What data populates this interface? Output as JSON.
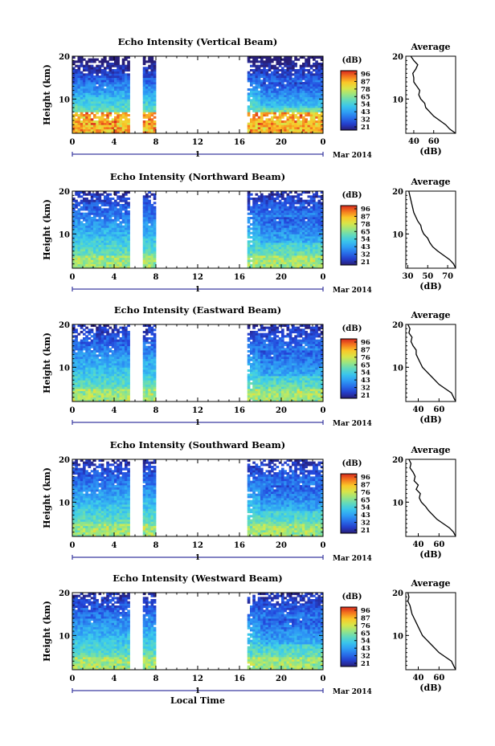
{
  "chart_data": [
    {
      "type": "heatmap",
      "title": "Echo Intensity (Vertical Beam)",
      "ylabel": "Height (km)",
      "xlim": [
        0,
        24
      ],
      "ylim": [
        2,
        20
      ],
      "xticks": [
        "0",
        "4",
        "8",
        "12",
        "16",
        "20",
        "0"
      ],
      "yticks": [
        "10",
        "20"
      ],
      "data_gaps_hours": [
        [
          5.5,
          6.7
        ],
        [
          8.0,
          16.7
        ]
      ],
      "colorbar": {
        "label": "(dB)",
        "ticks": [
          "96",
          "87",
          "78",
          "65",
          "54",
          "43",
          "32",
          "21"
        ]
      },
      "average_profile": {
        "title": "Average",
        "xlabel": "(dB)",
        "xticks": [
          "40",
          "60"
        ],
        "xlim": [
          32,
          82
        ],
        "height_km": [
          2,
          3,
          4,
          5,
          6,
          7,
          8,
          9,
          10,
          11,
          12,
          13,
          14,
          15,
          16,
          17,
          18,
          19,
          20
        ],
        "values_db": [
          82,
          76,
          72,
          66,
          60,
          56,
          52,
          51,
          47,
          45,
          46,
          43,
          40,
          40,
          39,
          42,
          44,
          40,
          37
        ]
      }
    },
    {
      "type": "heatmap",
      "title": "Echo Intensity (Northward Beam)",
      "ylabel": "Height (km)",
      "xlim": [
        0,
        24
      ],
      "ylim": [
        2,
        20
      ],
      "xticks": [
        "0",
        "4",
        "8",
        "12",
        "16",
        "20",
        "0"
      ],
      "yticks": [
        "10",
        "20"
      ],
      "data_gaps_hours": [
        [
          5.5,
          6.7
        ],
        [
          8.0,
          16.7
        ]
      ],
      "colorbar": {
        "label": "(dB)",
        "ticks": [
          "96",
          "87",
          "78",
          "65",
          "54",
          "43",
          "32",
          "21"
        ]
      },
      "average_profile": {
        "title": "Average",
        "xlabel": "(dB)",
        "xticks": [
          "30",
          "50",
          "70"
        ],
        "xlim": [
          28,
          78
        ],
        "height_km": [
          2,
          3,
          4,
          5,
          6,
          7,
          8,
          9,
          10,
          11,
          12,
          13,
          14,
          15,
          16,
          17,
          18,
          19,
          20
        ],
        "values_db": [
          78,
          76,
          72,
          66,
          60,
          55,
          52,
          50,
          46,
          44,
          43,
          40,
          38,
          36,
          35,
          34,
          33,
          32,
          31
        ]
      }
    },
    {
      "type": "heatmap",
      "title": "Echo Intensity (Eastward Beam)",
      "ylabel": "Height (km)",
      "xlim": [
        0,
        24
      ],
      "ylim": [
        2,
        20
      ],
      "xticks": [
        "0",
        "4",
        "8",
        "12",
        "16",
        "20",
        "0"
      ],
      "yticks": [
        "10",
        "20"
      ],
      "data_gaps_hours": [
        [
          5.5,
          6.7
        ],
        [
          8.0,
          16.7
        ]
      ],
      "colorbar": {
        "label": "(dB)",
        "ticks": [
          "96",
          "87",
          "76",
          "65",
          "54",
          "43",
          "32",
          "21"
        ]
      },
      "average_profile": {
        "title": "Average",
        "xlabel": "(dB)",
        "xticks": [
          "40",
          "60"
        ],
        "xlim": [
          28,
          76
        ],
        "height_km": [
          2,
          3,
          4,
          5,
          6,
          7,
          8,
          9,
          10,
          11,
          12,
          13,
          14,
          15,
          16,
          17,
          18,
          19,
          20
        ],
        "values_db": [
          76,
          74,
          72,
          66,
          60,
          56,
          52,
          48,
          44,
          42,
          40,
          38,
          38,
          35,
          33,
          34,
          31,
          32,
          30
        ]
      }
    },
    {
      "type": "heatmap",
      "title": "Echo Intensity (Southward Beam)",
      "ylabel": "Height (km)",
      "xlim": [
        0,
        24
      ],
      "ylim": [
        2,
        20
      ],
      "xticks": [
        "0",
        "4",
        "8",
        "12",
        "16",
        "20",
        "0"
      ],
      "yticks": [
        "10",
        "20"
      ],
      "data_gaps_hours": [
        [
          5.5,
          6.7
        ],
        [
          8.0,
          16.7
        ]
      ],
      "colorbar": {
        "label": "(dB)",
        "ticks": [
          "96",
          "87",
          "76",
          "65",
          "54",
          "43",
          "32",
          "21"
        ]
      },
      "average_profile": {
        "title": "Average",
        "xlabel": "(dB)",
        "xticks": [
          "40",
          "60"
        ],
        "xlim": [
          28,
          76
        ],
        "height_km": [
          2,
          3,
          4,
          5,
          6,
          7,
          8,
          9,
          10,
          11,
          12,
          13,
          14,
          15,
          16,
          17,
          18,
          19,
          20
        ],
        "values_db": [
          76,
          74,
          70,
          64,
          58,
          54,
          50,
          47,
          43,
          41,
          42,
          38,
          40,
          36,
          37,
          35,
          32,
          33,
          31
        ]
      }
    },
    {
      "type": "heatmap",
      "title": "Echo Intensity (Westward Beam)",
      "ylabel": "Height (km)",
      "xlabel": "Local Time",
      "xlim": [
        0,
        24
      ],
      "ylim": [
        2,
        20
      ],
      "xticks": [
        "0",
        "4",
        "8",
        "12",
        "16",
        "20",
        "0"
      ],
      "yticks": [
        "10",
        "20"
      ],
      "data_gaps_hours": [
        [
          5.5,
          6.7
        ],
        [
          8.0,
          16.7
        ]
      ],
      "colorbar": {
        "label": "(dB)",
        "ticks": [
          "96",
          "87",
          "76",
          "65",
          "54",
          "43",
          "32",
          "21"
        ]
      },
      "average_profile": {
        "title": "Average",
        "xlabel": "(dB)",
        "xticks": [
          "40",
          "60"
        ],
        "xlim": [
          28,
          76
        ],
        "height_km": [
          2,
          3,
          4,
          5,
          6,
          7,
          8,
          9,
          10,
          11,
          12,
          13,
          14,
          15,
          16,
          17,
          18,
          19,
          20
        ],
        "values_db": [
          76,
          74,
          72,
          66,
          60,
          56,
          52,
          48,
          44,
          42,
          40,
          38,
          36,
          34,
          33,
          32,
          30,
          31,
          30
        ]
      }
    }
  ],
  "date_axis": {
    "day_label": "1",
    "month_label": "Mar 2014"
  }
}
